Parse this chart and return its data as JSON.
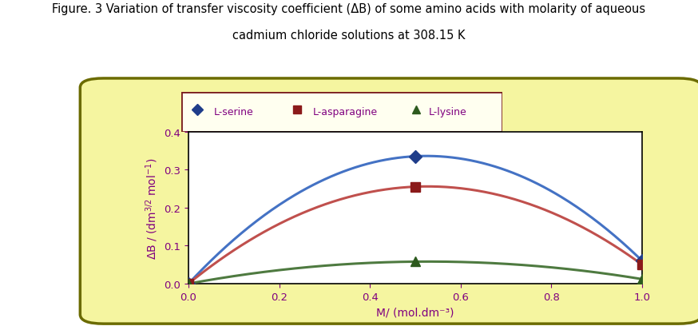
{
  "title_line1": "Figure. 3 Variation of transfer viscosity coefficient (ΔB) of some amino acids with molarity of aqueous",
  "title_line2": "cadmium chloride solutions at 308.15 K",
  "xlabel": "M/ (mol.dm⁻³)",
  "xlim": [
    0,
    1.0
  ],
  "ylim": [
    0,
    0.4
  ],
  "xticks": [
    0,
    0.2,
    0.4,
    0.6,
    0.8,
    1.0
  ],
  "yticks": [
    0,
    0.1,
    0.2,
    0.3,
    0.4
  ],
  "series": [
    {
      "name": "L-serine",
      "x": [
        0,
        0.5,
        1.0
      ],
      "y": [
        0,
        0.335,
        0.06
      ],
      "color": "#4472c4",
      "marker": "D",
      "marker_color": "#1f3d8a",
      "marker_size": 8
    },
    {
      "name": "L-asparagine",
      "x": [
        0,
        0.5,
        1.0
      ],
      "y": [
        0,
        0.255,
        0.05
      ],
      "color": "#c0504d",
      "marker": "s",
      "marker_color": "#8b1a1a",
      "marker_size": 9
    },
    {
      "name": "L-lysine",
      "x": [
        0,
        0.5,
        1.0
      ],
      "y": [
        0,
        0.058,
        0.012
      ],
      "color": "#4e7a40",
      "marker": "^",
      "marker_color": "#2d5a1e",
      "marker_size": 9
    }
  ],
  "panel_bg": "#f5f5a0",
  "panel_edge_color": "#6b6b00",
  "legend_box_edge": "#7b2020",
  "legend_box_bg": "#fffff0",
  "plot_bg": "#ffffff",
  "title_color": "#000000",
  "axis_label_color": "#800080",
  "tick_label_color": "#800080",
  "title_fontsize": 10.5,
  "axis_label_fontsize": 10,
  "tick_fontsize": 9.5,
  "legend_fontsize": 9
}
